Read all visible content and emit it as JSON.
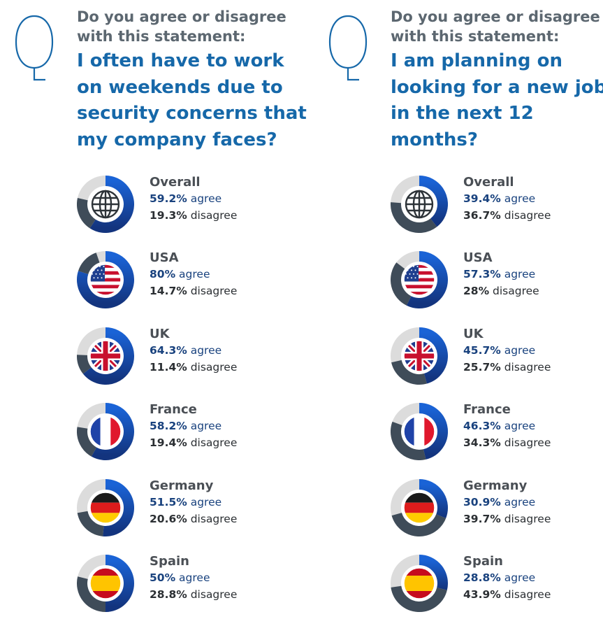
{
  "colors": {
    "agree": "#1a63d6",
    "agree_dark": "#13347e",
    "disagree": "#3f4c59",
    "disagree_light": "#586675",
    "neutral": "#dcdcdc",
    "heading_gray": "#5c6770",
    "heading_blue": "#1668a9"
  },
  "panels": [
    {
      "prompt": "Do you agree or disagree with this statement:",
      "statement": "I often have to work on weekends due to security concerns that my company faces?",
      "icon": "question-bubble-icon"
    },
    {
      "prompt": "Do you agree or disagree with this statement:",
      "statement": "I am planning on looking for a new job in the next 12 months?",
      "icon": "question-bubble-icon"
    }
  ],
  "agree_word": "agree",
  "disagree_word": "disagree",
  "chart_data": [
    {
      "type": "pie",
      "title": "I often have to work on weekends due to security concerns that my company faces?",
      "categories": [
        "Overall",
        "USA",
        "UK",
        "France",
        "Germany",
        "Spain"
      ],
      "icons": [
        "globe-icon",
        "usa-flag-icon",
        "uk-flag-icon",
        "france-flag-icon",
        "germany-flag-icon",
        "spain-flag-icon"
      ],
      "series": [
        {
          "name": "agree",
          "values": [
            59.2,
            80,
            64.3,
            58.2,
            51.5,
            50
          ],
          "labels": [
            "59.2%",
            "80%",
            "64.3%",
            "58.2%",
            "51.5%",
            "50%"
          ]
        },
        {
          "name": "disagree",
          "values": [
            19.3,
            14.7,
            11.4,
            19.4,
            20.6,
            28.8
          ],
          "labels": [
            "19.3%",
            "14.7%",
            "11.4%",
            "19.4%",
            "20.6%",
            "28.8%"
          ]
        }
      ]
    },
    {
      "type": "pie",
      "title": "I am planning on looking for a new job in the next 12 months?",
      "categories": [
        "Overall",
        "USA",
        "UK",
        "France",
        "Germany",
        "Spain"
      ],
      "icons": [
        "globe-icon",
        "usa-flag-icon",
        "uk-flag-icon",
        "france-flag-icon",
        "germany-flag-icon",
        "spain-flag-icon"
      ],
      "series": [
        {
          "name": "agree",
          "values": [
            39.4,
            57.3,
            45.7,
            46.3,
            30.9,
            28.8
          ],
          "labels": [
            "39.4%",
            "57.3%",
            "45.7%",
            "46.3%",
            "30.9%",
            "28.8%"
          ]
        },
        {
          "name": "disagree",
          "values": [
            36.7,
            28,
            25.7,
            34.3,
            39.7,
            43.9
          ],
          "labels": [
            "36.7%",
            "28%",
            "25.7%",
            "34.3%",
            "39.7%",
            "43.9%"
          ]
        }
      ]
    }
  ]
}
